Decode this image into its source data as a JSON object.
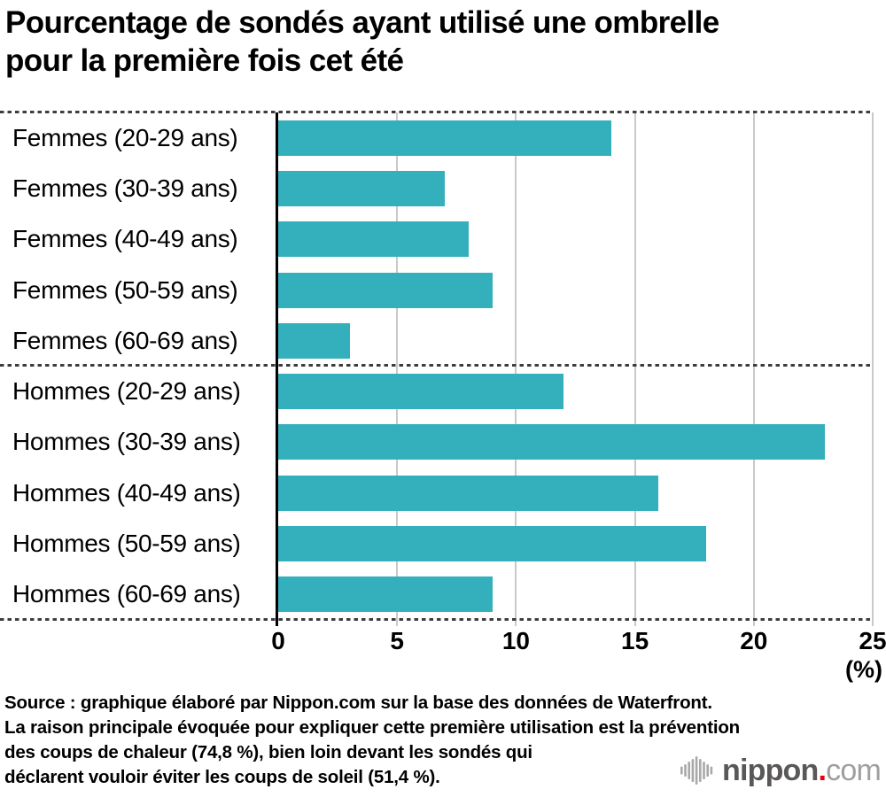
{
  "title_lines": [
    "Pourcentage de sondés ayant utilisé une ombrelle",
    "pour la première fois cet été"
  ],
  "chart_data": {
    "type": "bar",
    "orientation": "horizontal",
    "title": "Pourcentage de sondés ayant utilisé une ombrelle pour la première fois cet été",
    "categories": [
      "Femmes (20-29 ans)",
      "Femmes (30-39 ans)",
      "Femmes (40-49 ans)",
      "Femmes (50-59 ans)",
      "Femmes (60-69 ans)",
      "Hommes (20-29 ans)",
      "Hommes (30-39 ans)",
      "Hommes (40-49 ans)",
      "Hommes (50-59 ans)",
      "Hommes (60-69 ans)"
    ],
    "values": [
      14,
      7,
      8,
      9,
      3,
      12,
      23,
      16,
      18,
      9
    ],
    "xlim": [
      0,
      25
    ],
    "xticks": [
      0,
      5,
      10,
      15,
      20,
      25
    ],
    "x_unit_label": "(%)",
    "bar_color": "#34AFBC",
    "grid": true,
    "group_break_after_index": 4,
    "legend": null
  },
  "source_lines": [
    "Source : graphique élaboré par Nippon.com sur la base des données de Waterfront.",
    "La raison principale évoquée pour expliquer cette première utilisation est la prévention",
    "des coups de chaleur (74,8 %), bien loin devant les sondés qui",
    "déclarent vouloir éviter les coups de soleil (51,4 %)."
  ],
  "logo": {
    "brand": "nippon",
    "dot": ".",
    "suffix": "com"
  }
}
